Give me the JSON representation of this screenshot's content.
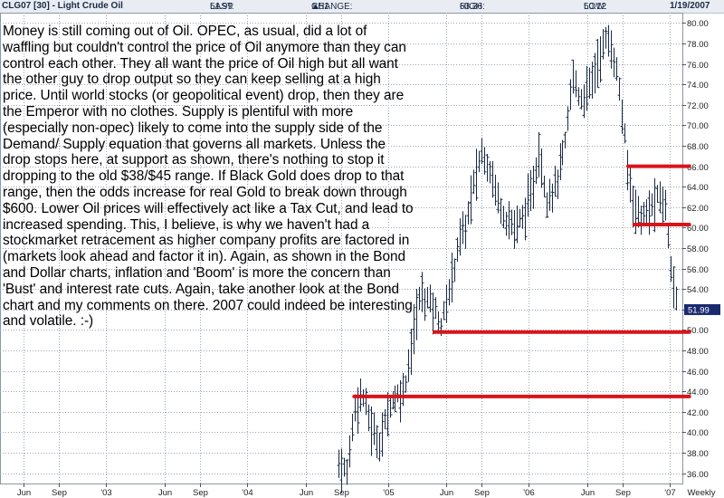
{
  "header": {
    "title": "CLG07 [30] - Light Crude Oil",
    "last_label": "LAST:",
    "last_value": "51.99",
    "change_label": "CHANGE:",
    "change_value": "1.51",
    "high_label": "HIGH:",
    "high_value": "63.36",
    "low_label": "LOW:",
    "low_value": "50.12",
    "date": "1/19/2007"
  },
  "commentary": "Money is still coming out of Oil. OPEC, as usual, did a lot of waffling but couldn't control the price of Oil anymore than they can control each other. They all want the price of Oil high but all want the other guy to drop output so they can keep selling at a high price. Until world stocks (or geopolitical event) drop, then they are the Emperor with no clothes. Supply is plentiful with more (especially non-opec) likely to come into the supply side of the Demand/ Supply equation that governs all markets. Unless the drop stops here, at support as shown, there's nothing to stop it dropping to the old $38/$45 range. If Black Gold does drop to that range, then the odds increase for real Gold to break down through $600. Lower Oil prices will effectively act like a Tax Cut, and lead to increased spending. This, I believe, is why we haven't had a stockmarket retracement as higher company profits are factored in (markets look ahead and factor it in). Again, as shown in the Bond and Dollar charts, inflation and 'Boom' is more the concern than 'Bust' and interest rate cuts. Again, take another look at the Bond chart and my comments on there. 2007 could indeed be interesting and volatile. :-)",
  "colors": {
    "bars": "#1a2a44",
    "support_lines": "#d9141b",
    "grid": "#9aa5b5",
    "header_bg": "#e9edf3",
    "price_tag_bg": "#1a2a6e"
  },
  "chart_data": {
    "type": "ohlc-bar",
    "title": "CLG07 [30] - Light Crude Oil",
    "periodicity": "Weekly",
    "ylim": [
      35,
      81
    ],
    "y_ticks": [
      36.0,
      38.0,
      40.0,
      42.0,
      44.0,
      46.0,
      48.0,
      50.0,
      52.0,
      54.0,
      56.0,
      58.0,
      60.0,
      62.0,
      64.0,
      66.0,
      68.0,
      70.0,
      72.0,
      74.0,
      76.0,
      78.0,
      80.0
    ],
    "y_tick_labels": [
      "36.00",
      "38.00",
      "40.00",
      "42.00",
      "44.00",
      "46.00",
      "48.00",
      "50.00",
      "52.00",
      "54.00",
      "56.00",
      "58.00",
      "60.00",
      "62.00",
      "64.00",
      "66.00",
      "68.00",
      "70.00",
      "72.00",
      "74.00",
      "76.00",
      "78.00",
      "80.00"
    ],
    "x_ticks": [
      {
        "label": "Jun",
        "date": "2002-06-01"
      },
      {
        "label": "Sep",
        "date": "2002-09-01"
      },
      {
        "label": "'03",
        "date": "2003-01-01"
      },
      {
        "label": "Jun",
        "date": "2003-06-01"
      },
      {
        "label": "Sep",
        "date": "2003-09-01"
      },
      {
        "label": "'04",
        "date": "2004-01-01"
      },
      {
        "label": "Jun",
        "date": "2004-06-01"
      },
      {
        "label": "Sep",
        "date": "2004-09-01"
      },
      {
        "label": "'05",
        "date": "2005-01-01"
      },
      {
        "label": "Jun",
        "date": "2005-06-01"
      },
      {
        "label": "Sep",
        "date": "2005-09-01"
      },
      {
        "label": "'06",
        "date": "2006-01-01"
      },
      {
        "label": "Jun",
        "date": "2006-06-01"
      },
      {
        "label": "Sep",
        "date": "2006-09-01"
      },
      {
        "label": "'07",
        "date": "2007-01-01"
      }
    ],
    "x_axis_label": "Weekly",
    "last_price": 51.99,
    "last_price_label": "51.99",
    "price_path": [
      {
        "date": "2004-08-25",
        "price": 37.0
      },
      {
        "date": "2004-09-15",
        "price": 36.0
      },
      {
        "date": "2004-10-05",
        "price": 42.5
      },
      {
        "date": "2004-10-25",
        "price": 43.8
      },
      {
        "date": "2004-11-20",
        "price": 40.0
      },
      {
        "date": "2004-12-10",
        "price": 39.0
      },
      {
        "date": "2005-01-05",
        "price": 43.0
      },
      {
        "date": "2005-02-10",
        "price": 44.0
      },
      {
        "date": "2005-03-01",
        "price": 48.0
      },
      {
        "date": "2005-03-25",
        "price": 53.5
      },
      {
        "date": "2005-04-15",
        "price": 53.0
      },
      {
        "date": "2005-05-01",
        "price": 52.0
      },
      {
        "date": "2005-05-20",
        "price": 50.5
      },
      {
        "date": "2005-06-15",
        "price": 55.0
      },
      {
        "date": "2005-07-01",
        "price": 58.5
      },
      {
        "date": "2005-07-20",
        "price": 60.0
      },
      {
        "date": "2005-08-10",
        "price": 64.0
      },
      {
        "date": "2005-08-30",
        "price": 67.5
      },
      {
        "date": "2005-09-20",
        "price": 66.0
      },
      {
        "date": "2005-10-10",
        "price": 63.0
      },
      {
        "date": "2005-11-01",
        "price": 61.0
      },
      {
        "date": "2005-11-25",
        "price": 60.0
      },
      {
        "date": "2005-12-15",
        "price": 61.0
      },
      {
        "date": "2006-01-05",
        "price": 63.0
      },
      {
        "date": "2006-01-25",
        "price": 67.5
      },
      {
        "date": "2006-02-15",
        "price": 63.0
      },
      {
        "date": "2006-03-10",
        "price": 64.0
      },
      {
        "date": "2006-04-05",
        "price": 68.0
      },
      {
        "date": "2006-04-25",
        "price": 75.0
      },
      {
        "date": "2006-05-15",
        "price": 72.5
      },
      {
        "date": "2006-06-05",
        "price": 73.5
      },
      {
        "date": "2006-07-01",
        "price": 76.5
      },
      {
        "date": "2006-07-20",
        "price": 78.5
      },
      {
        "date": "2006-08-08",
        "price": 77.0
      },
      {
        "date": "2006-08-25",
        "price": 73.0
      },
      {
        "date": "2006-09-15",
        "price": 65.0
      },
      {
        "date": "2006-10-05",
        "price": 61.5
      },
      {
        "date": "2006-10-25",
        "price": 61.0
      },
      {
        "date": "2006-11-15",
        "price": 62.0
      },
      {
        "date": "2006-12-05",
        "price": 63.0
      },
      {
        "date": "2006-12-20",
        "price": 62.0
      },
      {
        "date": "2007-01-05",
        "price": 56.0
      },
      {
        "date": "2007-01-19",
        "price": 52.0
      }
    ],
    "support_lines": [
      {
        "price": 66.0,
        "from": "2006-09-15",
        "to": "2007-01-19"
      },
      {
        "price": 60.3,
        "from": "2006-10-01",
        "to": "2007-01-19"
      },
      {
        "price": 49.8,
        "from": "2005-05-01",
        "to": "2007-01-19"
      },
      {
        "price": 43.5,
        "from": "2004-10-05",
        "to": "2007-01-19"
      }
    ]
  }
}
